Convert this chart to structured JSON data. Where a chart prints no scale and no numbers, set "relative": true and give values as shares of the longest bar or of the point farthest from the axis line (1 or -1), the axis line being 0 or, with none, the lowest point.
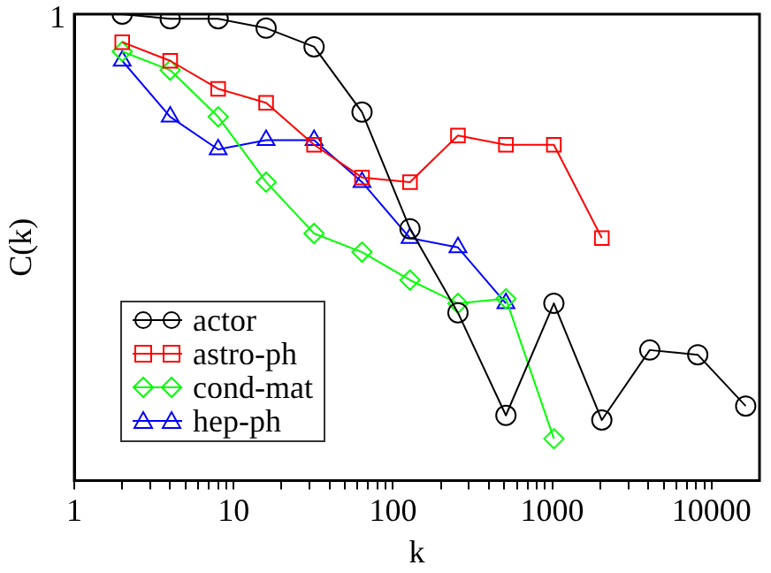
{
  "chart_data": {
    "type": "line",
    "xlabel": "k",
    "ylabel": "C(k)",
    "log": "x",
    "xlim": [
      1,
      20000
    ],
    "relative": true,
    "annotations": [
      "1"
    ],
    "xticks": [
      1,
      {
        "value": 2,
        "label": null
      },
      {
        "value": 3,
        "label": null
      },
      {
        "value": 4,
        "label": null
      },
      {
        "value": 5,
        "label": null
      },
      {
        "value": 6,
        "label": null
      },
      {
        "value": 7,
        "label": null
      },
      {
        "value": 8,
        "label": null
      },
      {
        "value": 9,
        "label": null
      },
      10,
      {
        "value": 20,
        "label": null
      },
      {
        "value": 30,
        "label": null
      },
      {
        "value": 40,
        "label": null
      },
      {
        "value": 50,
        "label": null
      },
      {
        "value": 60,
        "label": null
      },
      {
        "value": 70,
        "label": null
      },
      {
        "value": 80,
        "label": null
      },
      {
        "value": 90,
        "label": null
      },
      100,
      {
        "value": 200,
        "label": null
      },
      {
        "value": 300,
        "label": null
      },
      {
        "value": 400,
        "label": null
      },
      {
        "value": 500,
        "label": null
      },
      {
        "value": 600,
        "label": null
      },
      {
        "value": 700,
        "label": null
      },
      {
        "value": 800,
        "label": null
      },
      {
        "value": 900,
        "label": null
      },
      1000,
      {
        "value": 2000,
        "label": null
      },
      {
        "value": 3000,
        "label": null
      },
      {
        "value": 4000,
        "label": null
      },
      {
        "value": 5000,
        "label": null
      },
      {
        "value": 6000,
        "label": null
      },
      {
        "value": 7000,
        "label": null
      },
      {
        "value": 8000,
        "label": null
      },
      {
        "value": 9000,
        "label": null
      },
      10000
    ],
    "grid": false,
    "legend": "bottom left",
    "line_style": "solid",
    "series": [
      {
        "name": "actor",
        "color": "#000000",
        "marker": "circle",
        "x": [
          2,
          4,
          8,
          16,
          32,
          64,
          128,
          256,
          512,
          1024,
          2048,
          4096,
          8192,
          16384
        ],
        "values": [
          1,
          0.99,
          0.99,
          0.97,
          0.93,
          0.79,
          0.54,
          0.36,
          0.14,
          0.38,
          0.13,
          0.28,
          0.27,
          0.16
        ]
      },
      {
        "name": "astro-ph",
        "color": "#ff0000",
        "marker": "square",
        "x": [
          2,
          4,
          8,
          16,
          32,
          64,
          128,
          256,
          512,
          1024,
          2048
        ],
        "values": [
          0.94,
          0.9,
          0.84,
          0.81,
          0.72,
          0.65,
          0.64,
          0.74,
          0.72,
          0.72,
          0.52
        ]
      },
      {
        "name": "cond-mat",
        "color": "#00ff00",
        "marker": "diamond",
        "x": [
          2,
          4,
          8,
          16,
          32,
          64,
          128,
          256,
          512,
          1024
        ],
        "values": [
          0.92,
          0.88,
          0.78,
          0.64,
          0.53,
          0.49,
          0.43,
          0.38,
          0.39,
          0.09
        ]
      },
      {
        "name": "hep-ph",
        "color": "#0000ff",
        "marker": "triangle",
        "x": [
          2,
          4,
          8,
          16,
          32,
          64,
          128,
          256,
          512
        ],
        "values": [
          0.9,
          0.78,
          0.71,
          0.73,
          0.73,
          0.64,
          0.52,
          0.5,
          0.38
        ]
      }
    ]
  }
}
